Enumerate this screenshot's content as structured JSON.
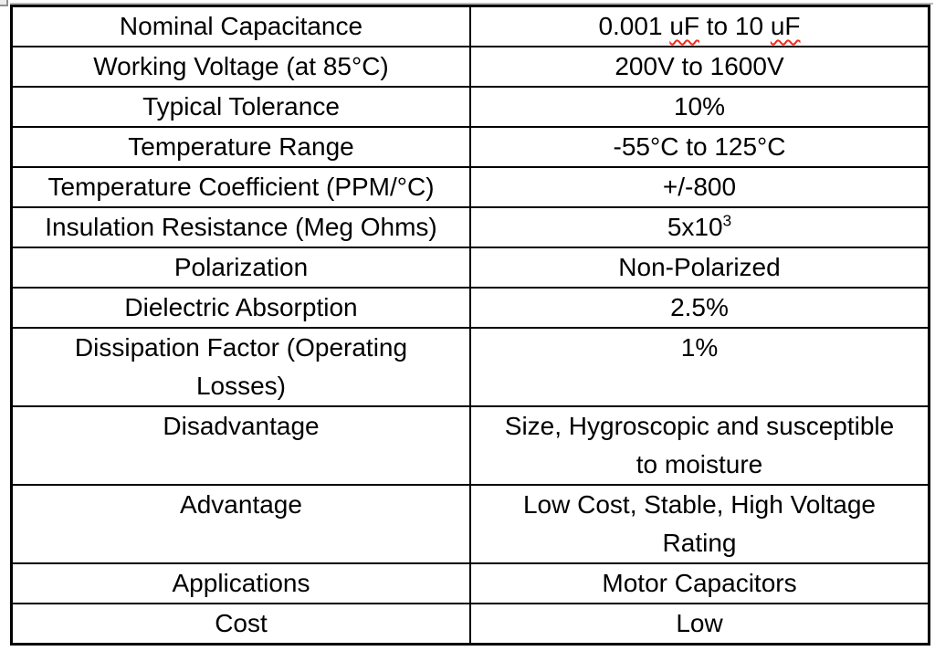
{
  "colors": {
    "table_border": "#000000",
    "text": "#000000",
    "spellcheck_squiggle": "#ee2c1c",
    "corner_fragment_fill": "#ededed",
    "corner_fragment_border": "#8f8f8f",
    "background": "#ffffff"
  },
  "table": {
    "columns": [
      "property",
      "value"
    ],
    "rows": [
      {
        "label": [
          "Nominal Capacitance"
        ],
        "value_parts": [
          "0.001 ",
          "uF",
          " to 10 ",
          "uF"
        ],
        "misspelled_words": [
          "uF",
          "uF"
        ]
      },
      {
        "label": [
          "Working Voltage (at 85°C)"
        ],
        "value": [
          "200V to 1600V"
        ]
      },
      {
        "label": [
          "Typical Tolerance"
        ],
        "value": [
          "10%"
        ]
      },
      {
        "label": [
          "Temperature Range"
        ],
        "value": [
          "-55°C to 125°C"
        ]
      },
      {
        "label": [
          "Temperature Coefficient (PPM/°C)"
        ],
        "value": [
          "+/-800"
        ]
      },
      {
        "label": [
          "Insulation Resistance (Meg Ohms)"
        ],
        "value_base": "5x10",
        "value_sup": "3"
      },
      {
        "label": [
          "Polarization"
        ],
        "value": [
          "Non-Polarized"
        ]
      },
      {
        "label": [
          "Dielectric Absorption"
        ],
        "value": [
          "2.5%"
        ]
      },
      {
        "label": [
          "Dissipation Factor (Operating",
          "Losses)"
        ],
        "value": [
          "1%"
        ]
      },
      {
        "label": [
          "Disadvantage"
        ],
        "value": [
          "Size, Hygroscopic and susceptible",
          "to moisture"
        ]
      },
      {
        "label": [
          "Advantage"
        ],
        "value": [
          "Low Cost, Stable, High Voltage",
          "Rating"
        ]
      },
      {
        "label": [
          "Applications"
        ],
        "value": [
          "Motor Capacitors"
        ]
      },
      {
        "label": [
          "Cost"
        ],
        "value": [
          "Low"
        ]
      }
    ]
  }
}
